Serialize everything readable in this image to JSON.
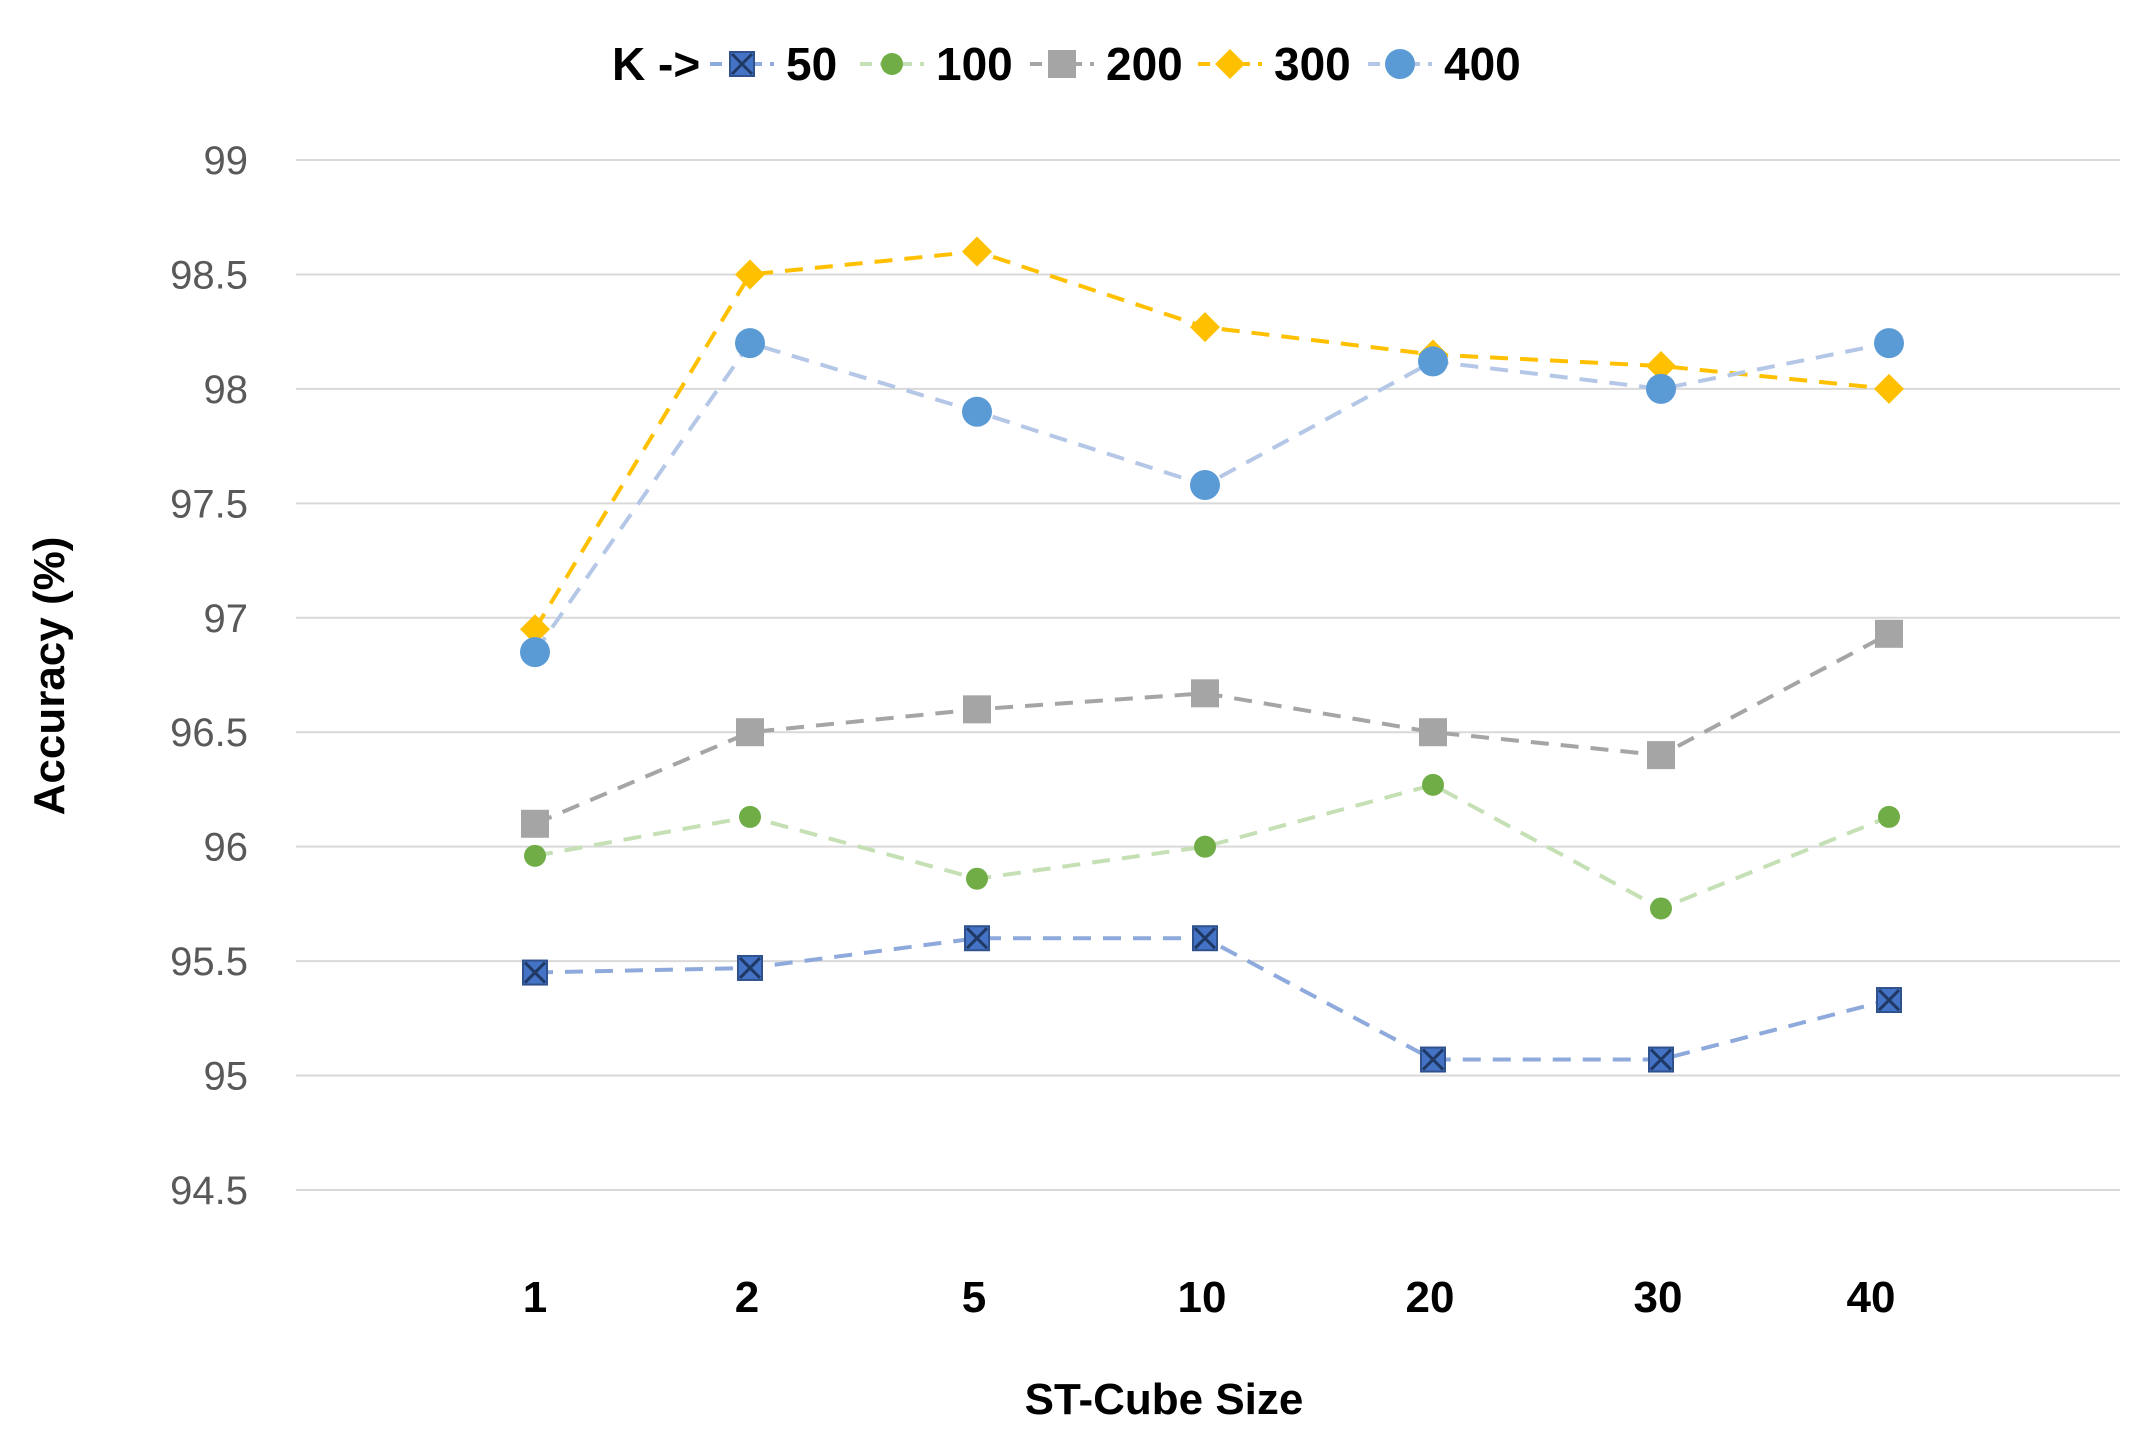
{
  "chart_data": {
    "type": "line",
    "title": "",
    "xlabel": "ST-Cube Size",
    "ylabel": "Accuracy (%)",
    "categories": [
      "1",
      "2",
      "5",
      "10",
      "20",
      "30",
      "40"
    ],
    "ylim": [
      94.5,
      99
    ],
    "yticks": [
      "94.5",
      "95",
      "95.5",
      "96",
      "96.5",
      "97",
      "97.5",
      "98",
      "98.5",
      "99"
    ],
    "grid": true,
    "legend_title": "K ->",
    "legend_position": "top",
    "series": [
      {
        "name": "50",
        "values": [
          95.45,
          95.47,
          95.6,
          95.6,
          95.07,
          95.07,
          95.33
        ],
        "color": "#4472C4",
        "line_color": "#8EA9DB",
        "marker": "square-x"
      },
      {
        "name": "100",
        "values": [
          95.96,
          96.13,
          95.86,
          96.0,
          96.27,
          95.73,
          96.13
        ],
        "color": "#70AD47",
        "line_color": "#C5E0B4",
        "marker": "circle-small"
      },
      {
        "name": "200",
        "values": [
          96.1,
          96.5,
          96.6,
          96.67,
          96.5,
          96.4,
          96.93
        ],
        "color": "#A5A5A5",
        "line_color": "#A5A5A5",
        "marker": "square"
      },
      {
        "name": "300",
        "values": [
          96.95,
          98.5,
          98.6,
          98.27,
          98.15,
          98.1,
          98.0
        ],
        "color": "#FFC000",
        "line_color": "#FFC000",
        "marker": "diamond"
      },
      {
        "name": "400",
        "values": [
          96.85,
          98.2,
          97.9,
          97.58,
          98.12,
          98.0,
          98.2
        ],
        "color": "#5B9BD5",
        "line_color": "#B4C7E7",
        "marker": "circle"
      }
    ]
  }
}
